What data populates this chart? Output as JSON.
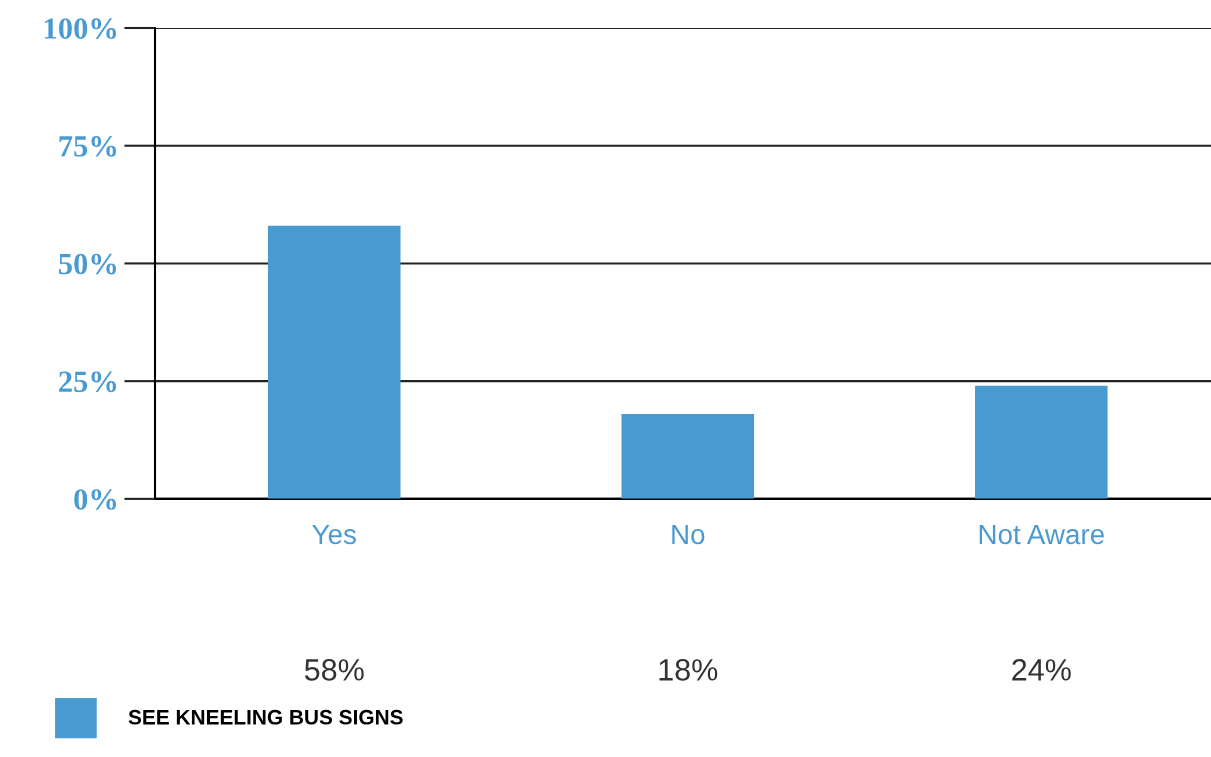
{
  "chart_data": {
    "type": "bar",
    "categories": [
      "Yes",
      "No",
      "Not Aware"
    ],
    "series": [
      {
        "name": "SEE KNEELING BUS SIGNS",
        "color": "#4a9ad2",
        "values": [
          58,
          18,
          24
        ]
      }
    ],
    "value_labels": [
      "58%",
      "18%",
      "24%"
    ],
    "ylim": [
      0,
      100
    ],
    "yticks": [
      {
        "value": 0,
        "label": "0%"
      },
      {
        "value": 25,
        "label": "25%"
      },
      {
        "value": 50,
        "label": "50%"
      },
      {
        "value": 75,
        "label": "75%"
      },
      {
        "value": 100,
        "label": "100%"
      }
    ],
    "grid": "y",
    "legend": "bottom left"
  }
}
